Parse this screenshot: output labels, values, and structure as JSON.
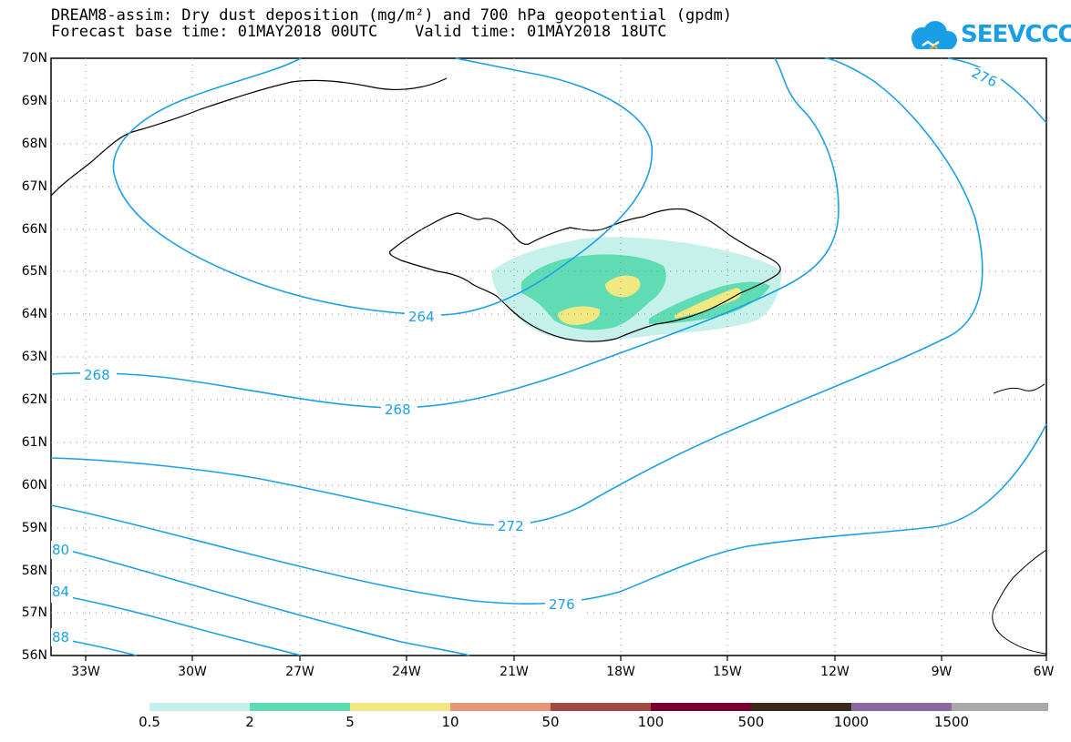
{
  "title_line1": "DREAM8-assim: Dry dust deposition (mg/m²) and 700 hPa geopotential (gpdm)",
  "title_line2": "Forecast base time: 01MAY2018 00UTC    Valid time: 01MAY2018 18UTC",
  "logo_text": "SEEVCCC",
  "colors": {
    "contour": "#1aa0e6",
    "legend": [
      "#c6f0ea",
      "#5fdcb4",
      "#f2e882",
      "#e49676",
      "#a04a44",
      "#7a0030",
      "#3a2a1c",
      "#8c6aa0",
      "#a9a9a9"
    ]
  },
  "latitudes": [
    "70N",
    "69N",
    "68N",
    "67N",
    "66N",
    "65N",
    "64N",
    "63N",
    "62N",
    "61N",
    "60N",
    "59N",
    "58N",
    "57N",
    "56N"
  ],
  "longitudes": [
    "33W",
    "30W",
    "27W",
    "24W",
    "21W",
    "18W",
    "15W",
    "12W",
    "9W",
    "6W"
  ],
  "contour_labels": [
    "276",
    "264",
    "268",
    "268",
    "272",
    "276",
    "80",
    "84",
    "88"
  ],
  "legend_labels": [
    "0.5",
    "2",
    "5",
    "10",
    "50",
    "100",
    "500",
    "1000",
    "1500"
  ]
}
